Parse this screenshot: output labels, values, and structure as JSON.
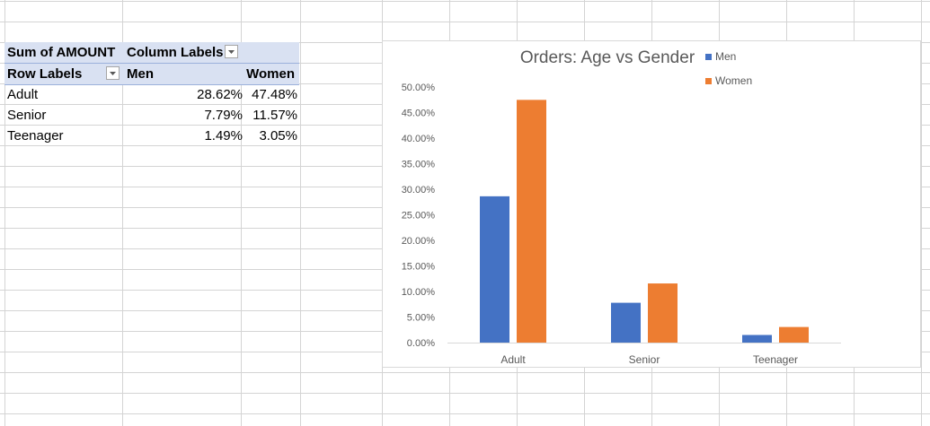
{
  "pivot": {
    "header1": {
      "sum_label": "Sum of AMOUNT",
      "column_labels": "Column Labels"
    },
    "header2": {
      "row_labels": "Row Labels",
      "men": "Men",
      "women": "Women"
    },
    "rows": [
      {
        "label": "Adult",
        "men": "28.62%",
        "women": "47.48%"
      },
      {
        "label": "Senior",
        "men": "7.79%",
        "women": "11.57%"
      },
      {
        "label": "Teenager",
        "men": "1.49%",
        "women": "3.05%"
      }
    ]
  },
  "chart_data": {
    "type": "bar",
    "title": "Orders: Age vs Gender",
    "categories": [
      "Adult",
      "Senior",
      "Teenager"
    ],
    "series": [
      {
        "name": "Men",
        "color": "#4472c4",
        "values": [
          28.62,
          7.79,
          1.49
        ]
      },
      {
        "name": "Women",
        "color": "#ed7d31",
        "values": [
          47.48,
          11.57,
          3.05
        ]
      }
    ],
    "ylim": [
      0,
      50
    ],
    "yticks": [
      "0.00%",
      "5.00%",
      "10.00%",
      "15.00%",
      "20.00%",
      "25.00%",
      "30.00%",
      "35.00%",
      "40.00%",
      "45.00%",
      "50.00%"
    ],
    "legend_position": "top-right",
    "grid": false
  },
  "colors": {
    "gridline": "#d4d4d4",
    "pivot_header": "#d9e1f2",
    "axis_text": "#595959",
    "title_text": "#595959"
  }
}
